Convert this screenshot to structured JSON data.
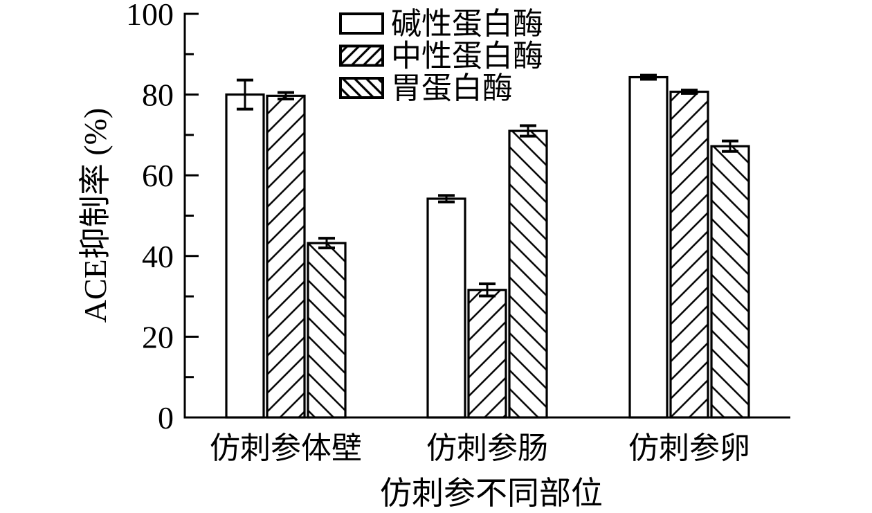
{
  "colors": {
    "ink": "#000000",
    "background": "#ffffff"
  },
  "chart_data": {
    "type": "bar",
    "title": "",
    "xlabel": "仿刺参不同部位",
    "ylabel": "ACE抑制率 (%)",
    "categories": [
      "仿刺参体壁",
      "仿刺参肠",
      "仿刺参卵"
    ],
    "series": [
      {
        "name": "碱性蛋白酶",
        "hatch": "none",
        "values": [
          80.0,
          54.2,
          84.3
        ],
        "errors": [
          3.6,
          0.8,
          0.5
        ]
      },
      {
        "name": "中性蛋白酶",
        "hatch": "forward-diagonal",
        "values": [
          79.7,
          31.6,
          80.7
        ],
        "errors": [
          0.8,
          1.5,
          0.4
        ]
      },
      {
        "name": "胃蛋白酶",
        "hatch": "backward-diagonal",
        "values": [
          43.2,
          71.0,
          67.2
        ],
        "errors": [
          1.2,
          1.3,
          1.3
        ]
      }
    ],
    "ylim": [
      0,
      100
    ],
    "yticks_major": [
      0,
      20,
      40,
      60,
      80,
      100
    ],
    "ytick_labels": [
      "0",
      "20",
      "40",
      "60",
      "80",
      "100"
    ],
    "yticks_minor": [
      10,
      30,
      50,
      70,
      90
    ],
    "error_bars": true,
    "grid": false,
    "legend_position": "top-center",
    "bar_fill": "#ffffff"
  }
}
